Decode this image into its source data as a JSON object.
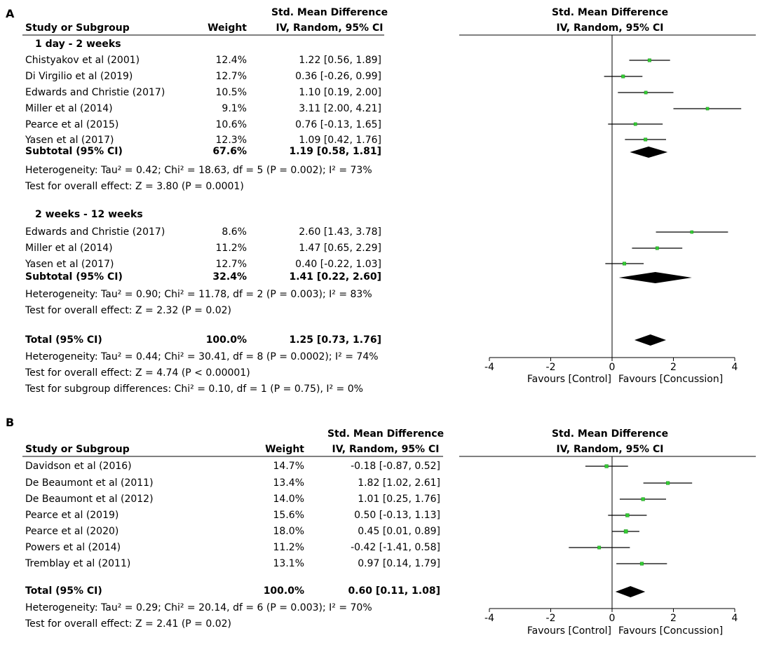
{
  "chart_data": [
    {
      "type": "forest",
      "panel_label": "A",
      "col_headers": {
        "study": "Study or Subgroup",
        "weight": "Weight",
        "smd_top": "Std. Mean Difference",
        "smd_bottom": "IV, Random, 95% CI",
        "plot_top": "Std. Mean Difference",
        "plot_bottom": "IV, Random, 95% CI"
      },
      "xlim": [
        -4,
        4
      ],
      "ticks": [
        "-4",
        "-2",
        "0",
        "2",
        "4"
      ],
      "tick_values": [
        -4,
        -2,
        0,
        2,
        4
      ],
      "favours_left": "Favours [Control]",
      "favours_right": "Favours [Concussion]",
      "subgroups": [
        {
          "title": "1 day - 2 weeks",
          "studies": [
            {
              "name": "Chistyakov et al (2001)",
              "weight": "12.4%",
              "ci_text": "1.22 [0.56, 1.89]",
              "est": 1.22,
              "lo": 0.56,
              "hi": 1.89
            },
            {
              "name": "Di Virgilio et al (2019)",
              "weight": "12.7%",
              "ci_text": "0.36 [-0.26, 0.99]",
              "est": 0.36,
              "lo": -0.26,
              "hi": 0.99
            },
            {
              "name": "Edwards and Christie (2017)",
              "weight": "10.5%",
              "ci_text": "1.10 [0.19, 2.00]",
              "est": 1.1,
              "lo": 0.19,
              "hi": 2.0
            },
            {
              "name": "Miller et al (2014)",
              "weight": "9.1%",
              "ci_text": "3.11 [2.00, 4.21]",
              "est": 3.11,
              "lo": 2.0,
              "hi": 4.21
            },
            {
              "name": "Pearce et al (2015)",
              "weight": "10.6%",
              "ci_text": "0.76 [-0.13, 1.65]",
              "est": 0.76,
              "lo": -0.13,
              "hi": 1.65
            },
            {
              "name": "Yasen et al (2017)",
              "weight": "12.3%",
              "ci_text": "1.09 [0.42, 1.76]",
              "est": 1.09,
              "lo": 0.42,
              "hi": 1.76
            }
          ],
          "subtotal": {
            "label": "Subtotal (95% CI)",
            "weight": "67.6%",
            "ci_text": "1.19 [0.58, 1.81]",
            "est": 1.19,
            "lo": 0.58,
            "hi": 1.81
          },
          "heterogeneity": "Heterogeneity: Tau² = 0.42; Chi² = 18.63, df = 5 (P = 0.002); I² = 73%",
          "overall_effect": "Test for overall effect: Z = 3.80 (P = 0.0001)"
        },
        {
          "title": "2 weeks - 12 weeks",
          "studies": [
            {
              "name": "Edwards and Christie (2017)",
              "weight": "8.6%",
              "ci_text": "2.60 [1.43, 3.78]",
              "est": 2.6,
              "lo": 1.43,
              "hi": 3.78
            },
            {
              "name": "Miller et al (2014)",
              "weight": "11.2%",
              "ci_text": "1.47 [0.65, 2.29]",
              "est": 1.47,
              "lo": 0.65,
              "hi": 2.29
            },
            {
              "name": "Yasen et al (2017)",
              "weight": "12.7%",
              "ci_text": "0.40 [-0.22, 1.03]",
              "est": 0.4,
              "lo": -0.22,
              "hi": 1.03
            }
          ],
          "subtotal": {
            "label": "Subtotal (95% CI)",
            "weight": "32.4%",
            "ci_text": "1.41 [0.22, 2.60]",
            "est": 1.41,
            "lo": 0.22,
            "hi": 2.6
          },
          "heterogeneity": "Heterogeneity: Tau² = 0.90; Chi² = 11.78, df = 2 (P = 0.003); I² = 83%",
          "overall_effect": "Test for overall effect: Z = 2.32 (P = 0.02)"
        }
      ],
      "total": {
        "label": "Total (95% CI)",
        "weight": "100.0%",
        "ci_text": "1.25 [0.73, 1.76]",
        "est": 1.25,
        "lo": 0.73,
        "hi": 1.76
      },
      "total_heterogeneity": "Heterogeneity: Tau² = 0.44; Chi² = 30.41, df = 8 (P = 0.0002); I² = 74%",
      "total_overall_effect": "Test for overall effect: Z = 4.74 (P < 0.00001)",
      "subgroup_differences": "Test for subgroup differences: Chi² = 0.10, df = 1 (P = 0.75), I² = 0%"
    },
    {
      "type": "forest",
      "panel_label": "B",
      "col_headers": {
        "study": "Study or Subgroup",
        "weight": "Weight",
        "smd_top": "Std. Mean Difference",
        "smd_bottom": "IV, Random, 95% CI",
        "plot_top": "Std. Mean Difference",
        "plot_bottom": "IV, Random, 95% CI"
      },
      "xlim": [
        -4,
        4
      ],
      "ticks": [
        "-4",
        "-2",
        "0",
        "2",
        "4"
      ],
      "tick_values": [
        -4,
        -2,
        0,
        2,
        4
      ],
      "favours_left": "Favours [Control]",
      "favours_right": "Favours [Concussion]",
      "studies": [
        {
          "name": "Davidson et al (2016)",
          "weight": "14.7%",
          "ci_text": "-0.18 [-0.87, 0.52]",
          "est": -0.18,
          "lo": -0.87,
          "hi": 0.52
        },
        {
          "name": "De Beaumont et al (2011)",
          "weight": "13.4%",
          "ci_text": "1.82 [1.02, 2.61]",
          "est": 1.82,
          "lo": 1.02,
          "hi": 2.61
        },
        {
          "name": "De Beaumont et al (2012)",
          "weight": "14.0%",
          "ci_text": "1.01 [0.25, 1.76]",
          "est": 1.01,
          "lo": 0.25,
          "hi": 1.76
        },
        {
          "name": "Pearce et al (2019)",
          "weight": "15.6%",
          "ci_text": "0.50 [-0.13, 1.13]",
          "est": 0.5,
          "lo": -0.13,
          "hi": 1.13
        },
        {
          "name": "Pearce et al (2020)",
          "weight": "18.0%",
          "ci_text": "0.45 [0.01, 0.89]",
          "est": 0.45,
          "lo": 0.01,
          "hi": 0.89
        },
        {
          "name": "Powers et al (2014)",
          "weight": "11.2%",
          "ci_text": "-0.42 [-1.41, 0.58]",
          "est": -0.42,
          "lo": -1.41,
          "hi": 0.58
        },
        {
          "name": "Tremblay et al (2011)",
          "weight": "13.1%",
          "ci_text": "0.97 [0.14, 1.79]",
          "est": 0.97,
          "lo": 0.14,
          "hi": 1.79
        }
      ],
      "total": {
        "label": "Total (95% CI)",
        "weight": "100.0%",
        "ci_text": "0.60 [0.11, 1.08]",
        "est": 0.6,
        "lo": 0.11,
        "hi": 1.08
      },
      "total_heterogeneity": "Heterogeneity: Tau² = 0.29; Chi² = 20.14, df = 6 (P = 0.003); I² = 70%",
      "total_overall_effect": "Test for overall effect: Z = 2.41 (P = 0.02)"
    }
  ],
  "colors": {
    "marker": "#33cc33",
    "marker_edge": "#1a8f1a",
    "line": "#000000",
    "diamond": "#000000"
  }
}
